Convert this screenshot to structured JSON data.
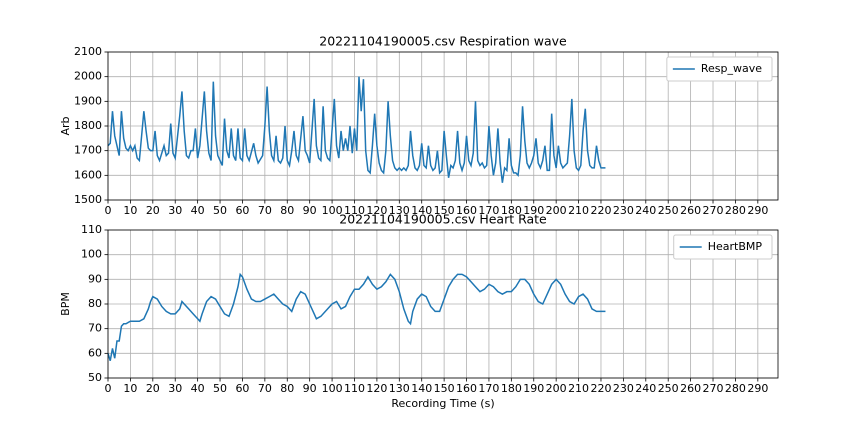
{
  "chart_data": [
    {
      "type": "line",
      "title": "20221104190005.csv Respiration wave",
      "ylabel": "Arb",
      "x": [
        0,
        1,
        2,
        3,
        5,
        6,
        7,
        8,
        9,
        10,
        11,
        12,
        13,
        14,
        16,
        17,
        18,
        19,
        20,
        21,
        22,
        23,
        25,
        26,
        27,
        28,
        29,
        30,
        32,
        33,
        34,
        35,
        36,
        37,
        38,
        39,
        40,
        41,
        43,
        44,
        45,
        46,
        47,
        48,
        49,
        50,
        51,
        52,
        53,
        54,
        55,
        56,
        57,
        58,
        59,
        60,
        61,
        62,
        63,
        65,
        66,
        67,
        69,
        70,
        71,
        72,
        73,
        74,
        75,
        76,
        77,
        78,
        79,
        80,
        81,
        82,
        83,
        84,
        85,
        87,
        88,
        89,
        90,
        92,
        93,
        94,
        95,
        96,
        97,
        98,
        99,
        101,
        102,
        103,
        104,
        105,
        106,
        107,
        108,
        109,
        110,
        111,
        112,
        113,
        114,
        115,
        116,
        117,
        118,
        119,
        120,
        121,
        122,
        123,
        124,
        125,
        126,
        127,
        128,
        129,
        130,
        131,
        132,
        133,
        134,
        135,
        136,
        137,
        138,
        139,
        140,
        141,
        142,
        143,
        144,
        145,
        146,
        147,
        148,
        149,
        150,
        151,
        152,
        153,
        154,
        155,
        156,
        157,
        158,
        159,
        160,
        161,
        162,
        163,
        164,
        165,
        166,
        167,
        168,
        169,
        170,
        171,
        172,
        173,
        174,
        175,
        176,
        177,
        178,
        179,
        180,
        181,
        182,
        183,
        184,
        185,
        186,
        187,
        188,
        189,
        190,
        191,
        192,
        193,
        194,
        195,
        196,
        197,
        198,
        199,
        200,
        201,
        202,
        203,
        204,
        205,
        206,
        207,
        208,
        209,
        210,
        211,
        212,
        213,
        214,
        215,
        216,
        217,
        218,
        219,
        220,
        221,
        222
      ],
      "series": [
        {
          "name": "Resp_wave",
          "color": "#1f77b4",
          "values": [
            1720,
            1730,
            1860,
            1760,
            1680,
            1860,
            1750,
            1710,
            1700,
            1720,
            1700,
            1720,
            1670,
            1660,
            1860,
            1780,
            1710,
            1700,
            1700,
            1780,
            1680,
            1660,
            1720,
            1680,
            1690,
            1810,
            1690,
            1670,
            1840,
            1940,
            1780,
            1680,
            1670,
            1700,
            1700,
            1790,
            1670,
            1720,
            1940,
            1780,
            1690,
            1660,
            1980,
            1760,
            1680,
            1660,
            1640,
            1830,
            1700,
            1670,
            1790,
            1680,
            1660,
            1790,
            1670,
            1660,
            1790,
            1680,
            1660,
            1730,
            1680,
            1650,
            1680,
            1800,
            1960,
            1780,
            1680,
            1660,
            1760,
            1660,
            1650,
            1670,
            1800,
            1660,
            1640,
            1700,
            1780,
            1680,
            1660,
            1840,
            1700,
            1680,
            1650,
            1910,
            1720,
            1670,
            1660,
            1880,
            1700,
            1670,
            1660,
            1910,
            1720,
            1670,
            1780,
            1700,
            1750,
            1700,
            1800,
            1690,
            1790,
            1700,
            2000,
            1860,
            1990,
            1700,
            1620,
            1610,
            1720,
            1850,
            1720,
            1650,
            1620,
            1610,
            1700,
            1900,
            1760,
            1660,
            1630,
            1620,
            1630,
            1620,
            1630,
            1620,
            1640,
            1780,
            1680,
            1630,
            1620,
            1640,
            1730,
            1640,
            1630,
            1720,
            1640,
            1620,
            1630,
            1700,
            1610,
            1620,
            1780,
            1680,
            1590,
            1640,
            1630,
            1660,
            1780,
            1650,
            1620,
            1650,
            1760,
            1660,
            1640,
            1690,
            1900,
            1660,
            1640,
            1650,
            1630,
            1640,
            1800,
            1680,
            1600,
            1650,
            1790,
            1650,
            1570,
            1630,
            1620,
            1750,
            1640,
            1610,
            1610,
            1600,
            1680,
            1880,
            1740,
            1650,
            1630,
            1650,
            1680,
            1750,
            1650,
            1630,
            1660,
            1720,
            1620,
            1620,
            1850,
            1680,
            1630,
            1720,
            1650,
            1630,
            1640,
            1650,
            1760,
            1910,
            1700,
            1630,
            1620,
            1640,
            1780,
            1870,
            1700,
            1640,
            1630,
            1630,
            1720,
            1660,
            1630,
            1630,
            1630
          ]
        }
      ],
      "xlim": [
        0,
        299
      ],
      "xticks": [
        0,
        10,
        20,
        30,
        40,
        50,
        60,
        70,
        80,
        90,
        100,
        110,
        120,
        130,
        140,
        150,
        160,
        170,
        180,
        190,
        200,
        210,
        220,
        230,
        240,
        250,
        260,
        270,
        280,
        290
      ],
      "ylim": [
        1500,
        2100
      ],
      "yticks": [
        1500,
        1600,
        1700,
        1800,
        1900,
        2000,
        2100
      ],
      "grid": true,
      "legend": "upper right"
    },
    {
      "type": "line",
      "title": "20221104190005.csv Heart Rate",
      "ylabel": "BPM",
      "xlabel": "Recording Time (s)",
      "x": [
        0,
        1,
        2,
        3,
        4,
        5,
        6,
        7,
        8,
        10,
        12,
        14,
        16,
        18,
        19,
        20,
        22,
        24,
        26,
        28,
        30,
        32,
        33,
        34,
        36,
        38,
        40,
        41,
        42,
        44,
        46,
        48,
        50,
        52,
        54,
        56,
        58,
        59,
        60,
        62,
        64,
        66,
        68,
        70,
        72,
        74,
        76,
        78,
        80,
        82,
        84,
        86,
        88,
        90,
        92,
        93,
        95,
        97,
        100,
        102,
        104,
        106,
        108,
        110,
        112,
        114,
        116,
        118,
        120,
        122,
        124,
        126,
        128,
        130,
        132,
        134,
        135,
        136,
        138,
        140,
        142,
        144,
        146,
        148,
        150,
        152,
        154,
        156,
        158,
        160,
        162,
        164,
        166,
        168,
        170,
        172,
        174,
        176,
        178,
        180,
        182,
        184,
        186,
        188,
        190,
        192,
        194,
        196,
        198,
        200,
        202,
        204,
        206,
        208,
        210,
        212,
        214,
        216,
        218,
        220,
        222
      ],
      "series": [
        {
          "name": "HeartBMP",
          "color": "#1f77b4",
          "values": [
            60,
            57,
            62,
            58,
            65,
            65,
            71,
            72,
            72,
            73,
            73,
            73,
            74,
            78,
            81,
            83,
            82,
            79,
            77,
            76,
            76,
            78,
            81,
            80,
            78,
            76,
            74,
            73,
            76,
            81,
            83,
            82,
            79,
            76,
            75,
            80,
            87,
            92,
            91,
            86,
            82,
            81,
            81,
            82,
            83,
            84,
            82,
            80,
            79,
            77,
            82,
            85,
            84,
            80,
            76,
            74,
            75,
            77,
            80,
            81,
            78,
            79,
            83,
            86,
            86,
            88,
            91,
            88,
            86,
            87,
            89,
            92,
            90,
            85,
            78,
            73,
            72,
            77,
            82,
            84,
            83,
            79,
            77,
            77,
            82,
            87,
            90,
            92,
            92,
            91,
            89,
            87,
            85,
            86,
            88,
            87,
            85,
            84,
            85,
            85,
            87,
            90,
            90,
            88,
            84,
            81,
            80,
            84,
            88,
            90,
            88,
            84,
            81,
            80,
            83,
            84,
            82,
            78,
            77,
            77,
            77
          ]
        }
      ],
      "xlim": [
        0,
        299
      ],
      "xticks": [
        0,
        10,
        20,
        30,
        40,
        50,
        60,
        70,
        80,
        90,
        100,
        110,
        120,
        130,
        140,
        150,
        160,
        170,
        180,
        190,
        200,
        210,
        220,
        230,
        240,
        250,
        260,
        270,
        280,
        290
      ],
      "ylim": [
        50,
        110
      ],
      "yticks": [
        50,
        60,
        70,
        80,
        90,
        100,
        110
      ],
      "grid": true,
      "legend": "upper right"
    }
  ]
}
